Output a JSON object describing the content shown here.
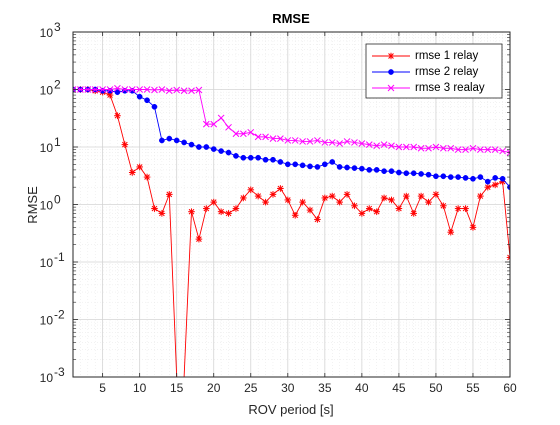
{
  "chart_data": {
    "type": "line",
    "title": "RMSE",
    "xlabel": "ROV period [s]",
    "ylabel": "RMSE",
    "xlim": [
      1,
      60
    ],
    "ylim": [
      0.001,
      1000
    ],
    "yscale": "log",
    "grid": true,
    "minor_grid": true,
    "legend_position": "top-right",
    "x_ticks": [
      5,
      10,
      15,
      20,
      25,
      30,
      35,
      40,
      45,
      50,
      55,
      60
    ],
    "y_ticks": [
      {
        "value": 0.001,
        "exp": "-3"
      },
      {
        "value": 0.01,
        "exp": "-2"
      },
      {
        "value": 0.1,
        "exp": "-1"
      },
      {
        "value": 1,
        "exp": "0"
      },
      {
        "value": 10,
        "exp": "1"
      },
      {
        "value": 100,
        "exp": "2"
      },
      {
        "value": 1000,
        "exp": "3"
      }
    ],
    "series": [
      {
        "name": "rmse 1 relay",
        "color": "#ff0000",
        "marker": "asterisk",
        "x": [
          1,
          2,
          3,
          4,
          5,
          6,
          7,
          8,
          9,
          10,
          11,
          12,
          13,
          14,
          15,
          16,
          17,
          18,
          19,
          20,
          21,
          22,
          23,
          24,
          25,
          26,
          27,
          28,
          29,
          30,
          31,
          32,
          33,
          34,
          35,
          36,
          37,
          38,
          39,
          40,
          41,
          42,
          43,
          44,
          45,
          46,
          47,
          48,
          49,
          50,
          51,
          52,
          53,
          54,
          55,
          56,
          57,
          58,
          59,
          60
        ],
        "y": [
          100,
          100,
          100,
          95,
          90,
          80,
          35,
          11,
          3.6,
          4.5,
          3,
          0.85,
          0.7,
          1.5,
          0.001,
          0.001,
          0.75,
          0.25,
          0.85,
          1.1,
          0.75,
          0.7,
          0.85,
          1.3,
          1.8,
          1.4,
          1.1,
          1.5,
          1.9,
          1.2,
          0.65,
          1.1,
          0.8,
          0.55,
          1.3,
          1.4,
          1.1,
          1.5,
          0.95,
          0.7,
          0.85,
          0.75,
          1.3,
          1.2,
          0.85,
          1.4,
          0.7,
          1.4,
          1.1,
          1.5,
          0.95,
          0.33,
          0.85,
          0.85,
          0.4,
          1.4,
          2,
          2.2,
          2.5,
          0.12
        ]
      },
      {
        "name": "rmse 2 relay",
        "color": "#0000ff",
        "marker": "dot",
        "x": [
          1,
          2,
          3,
          4,
          5,
          6,
          7,
          8,
          9,
          10,
          11,
          12,
          13,
          14,
          15,
          16,
          17,
          18,
          19,
          20,
          21,
          22,
          23,
          24,
          25,
          26,
          27,
          28,
          29,
          30,
          31,
          32,
          33,
          34,
          35,
          36,
          37,
          38,
          39,
          40,
          41,
          42,
          43,
          44,
          45,
          46,
          47,
          48,
          49,
          50,
          51,
          52,
          53,
          54,
          55,
          56,
          57,
          58,
          59,
          60
        ],
        "y": [
          100,
          100,
          100,
          100,
          95,
          95,
          90,
          95,
          95,
          75,
          65,
          50,
          13,
          14,
          13,
          12,
          11,
          10,
          10,
          9.2,
          8.5,
          8,
          7,
          6.5,
          6.5,
          6.5,
          6,
          6,
          5.5,
          5,
          5,
          4.8,
          4.6,
          4.5,
          5,
          5.5,
          4.5,
          4.4,
          4.3,
          4.2,
          4,
          4,
          3.8,
          3.8,
          3.6,
          3.5,
          3.5,
          3.4,
          3.3,
          3.1,
          3.1,
          3,
          3,
          2.9,
          2.8,
          3,
          2.5,
          2.9,
          2.8,
          2
        ]
      },
      {
        "name": "rmse 3 realay",
        "color": "#ff00ff",
        "marker": "x",
        "x": [
          1,
          2,
          3,
          4,
          5,
          6,
          7,
          8,
          9,
          10,
          11,
          12,
          13,
          14,
          15,
          16,
          17,
          18,
          19,
          20,
          21,
          22,
          23,
          24,
          25,
          26,
          27,
          28,
          29,
          30,
          31,
          32,
          33,
          34,
          35,
          36,
          37,
          38,
          39,
          40,
          41,
          42,
          43,
          44,
          45,
          46,
          47,
          48,
          49,
          50,
          51,
          52,
          53,
          54,
          55,
          56,
          57,
          58,
          59,
          60
        ],
        "y": [
          100,
          100,
          100,
          100,
          100,
          100,
          105,
          100,
          100,
          100,
          100,
          98,
          100,
          95,
          98,
          95,
          95,
          98,
          25,
          25,
          32,
          22,
          17,
          17,
          18,
          15,
          15,
          14,
          14,
          13,
          13,
          12.5,
          12.5,
          13,
          12,
          12,
          11.5,
          12.5,
          12,
          11.5,
          11,
          10.5,
          11,
          10.5,
          10,
          10,
          10,
          9.5,
          9.5,
          10,
          9.5,
          9.5,
          9,
          9,
          9.5,
          9,
          9,
          9,
          8.5,
          8
        ]
      }
    ]
  }
}
